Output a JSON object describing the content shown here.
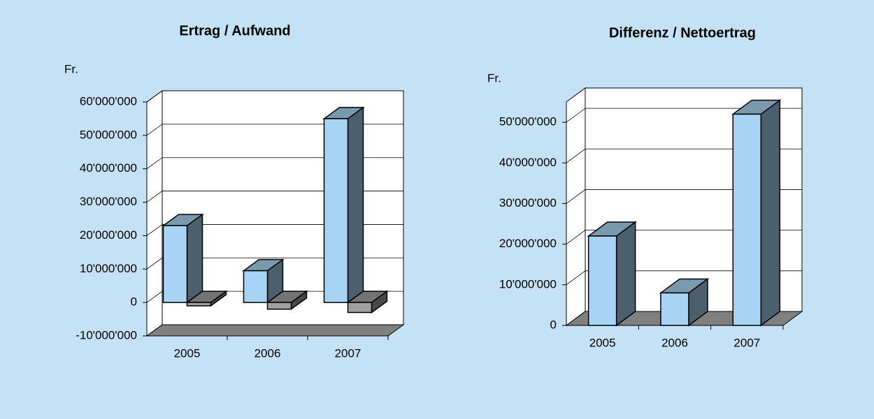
{
  "chart_data": [
    {
      "type": "bar",
      "title": "Ertrag / Aufwand",
      "y_label": "Fr.",
      "categories": [
        "2005",
        "2006",
        "2007"
      ],
      "series": [
        {
          "color": "#a6d4f2",
          "values": [
            23000000,
            9500000,
            55000000
          ]
        },
        {
          "color": "#a0a0a0",
          "values": [
            -1000000,
            -2000000,
            -3000000
          ]
        }
      ],
      "ylim": [
        -10000000,
        60000000
      ],
      "yticks": [
        {
          "value": -10000000,
          "label": "-10'000'000"
        },
        0,
        {
          "value": 10000000,
          "label": "10'000'000"
        },
        {
          "value": 20000000,
          "label": "20'000'000"
        },
        {
          "value": 30000000,
          "label": "30'000'000"
        },
        {
          "value": 40000000,
          "label": "40'000'000"
        },
        {
          "value": 50000000,
          "label": "50'000'000"
        },
        {
          "value": 60000000,
          "label": "60'000'000"
        }
      ],
      "grid": true
    },
    {
      "type": "bar",
      "title": "Differenz / Nettoertrag",
      "y_label": "Fr.",
      "categories": [
        "2005",
        "2006",
        "2007"
      ],
      "series": [
        {
          "color": "#a6d4f2",
          "values": [
            22000000,
            8000000,
            52000000
          ]
        }
      ],
      "ylim": [
        0,
        55000000
      ],
      "yticks": [
        0,
        {
          "value": 10000000,
          "label": "10'000'000"
        },
        {
          "value": 20000000,
          "label": "20'000'000"
        },
        {
          "value": 30000000,
          "label": "30'000'000"
        },
        {
          "value": 40000000,
          "label": "40'000'000"
        },
        {
          "value": 50000000,
          "label": "50'000'000"
        }
      ],
      "grid": true
    }
  ]
}
